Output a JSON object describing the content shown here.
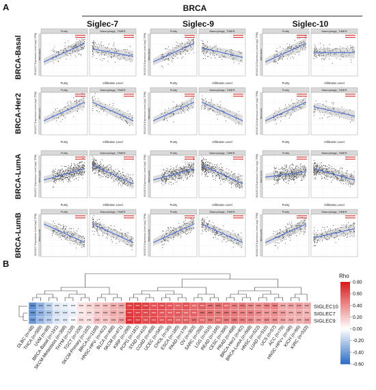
{
  "figure": {
    "panel_a_label": "A",
    "panel_b_label": "B",
    "title": "BRCA",
    "columns": [
      "Siglec-7",
      "Siglec-9",
      "Siglec-10"
    ],
    "rows": [
      "BRCA-Basal",
      "BRCA-Her2",
      "BRCA-LumA",
      "BRCA-LumB"
    ]
  },
  "scatter": {
    "facet_left": "Purity",
    "facet_right": "Macrophage_TIMER",
    "xlabel_left": "Purity",
    "xlabel_right": "Infiltration Level",
    "ylabels": [
      "SIGLEC7 Expression Level (log2 TPM)",
      "SIGLEC9 Expression Level (log2 TPM)",
      "SIGLEC10 Expression Level (log2 TPM)"
    ],
    "colors": {
      "point": "#3a3a3a",
      "line": "#4f6fd0",
      "band": "#c8c8c8",
      "strip": "#d9d9d9",
      "annot": "#d01c1c"
    }
  },
  "chart_data": {
    "type": "heatmap",
    "rows": [
      "SIGLEC10",
      "SIGLEC7",
      "SIGLEC9"
    ],
    "columns": [
      "DLBC (n=48)",
      "THCA (n=509)",
      "UVM (n=80)",
      "BRCA-Basal (n=191)",
      "SKCM-Metastasis (n=368)",
      "THYM (n=120)",
      "TGCT (n=150)",
      "SKCM-Primary (n=103)",
      "BRCA (n=1100)",
      "HNSC-HPV- (n=422)",
      "BLCA (n=408)",
      "SKCM (n=471)",
      "KIRP (n=290)",
      "PCPG (n=181)",
      "STAD (n=415)",
      "COAD (n=458)",
      "UCEC (n=545)",
      "CHOL (n=36)",
      "ESCA (n=185)",
      "PAAD (n=179)",
      "OV (n=303)",
      "SARC (n=260)",
      "LGG (n=516)",
      "READ (n=166)",
      "CESC (n=306)",
      "PRAD (n=498)",
      "BRCA-Her2 (n=82)",
      "BRCA-LumA (n=568)",
      "HNSC (n=522)",
      "LUAD (n=515)",
      "UCS (n=57)",
      "ACC (n=79)",
      "HNSC-HPV+ (n=98)",
      "KICH (n=66)",
      "KIRC (n=533)"
    ],
    "values": [
      [
        -0.46,
        -0.3,
        -0.18,
        -0.08,
        -0.06,
        -0.04,
        0.1,
        0.14,
        0.2,
        0.22,
        0.28,
        0.3,
        0.68,
        0.7,
        0.66,
        0.6,
        0.62,
        0.58,
        0.55,
        0.6,
        0.52,
        0.56,
        0.48,
        0.5,
        0.52,
        0.44,
        0.46,
        0.4,
        0.38,
        0.42,
        0.44,
        0.3,
        0.32,
        0.34,
        0.3
      ],
      [
        -0.44,
        -0.32,
        -0.24,
        -0.12,
        -0.1,
        -0.06,
        0.08,
        0.12,
        0.18,
        0.24,
        0.3,
        0.28,
        0.7,
        0.66,
        0.64,
        0.62,
        0.58,
        0.56,
        0.58,
        0.54,
        0.55,
        0.5,
        0.5,
        0.46,
        0.48,
        0.46,
        0.42,
        0.44,
        0.4,
        0.36,
        0.4,
        0.34,
        0.28,
        0.3,
        0.26
      ],
      [
        -0.42,
        -0.28,
        -0.2,
        -0.1,
        -0.08,
        -0.02,
        0.12,
        0.1,
        0.22,
        0.2,
        0.26,
        0.32,
        0.72,
        0.68,
        0.62,
        0.64,
        0.6,
        0.6,
        0.54,
        0.56,
        0.5,
        0.52,
        0.46,
        0.52,
        0.46,
        0.48,
        0.44,
        0.42,
        0.36,
        0.4,
        0.38,
        0.32,
        0.3,
        0.28,
        0.32
      ]
    ],
    "legend_title": "Rho",
    "legend_ticks": [
      "0.80",
      "0.60",
      "0.40",
      "0.20",
      "0.00",
      "-0.20",
      "-0.40",
      "-0.60"
    ],
    "scale_range": [
      -0.6,
      0.8
    ],
    "cell_marker": "***",
    "colors": {
      "low": "#2b6cc4",
      "mid": "#ffffff",
      "high": "#d7191c"
    }
  }
}
